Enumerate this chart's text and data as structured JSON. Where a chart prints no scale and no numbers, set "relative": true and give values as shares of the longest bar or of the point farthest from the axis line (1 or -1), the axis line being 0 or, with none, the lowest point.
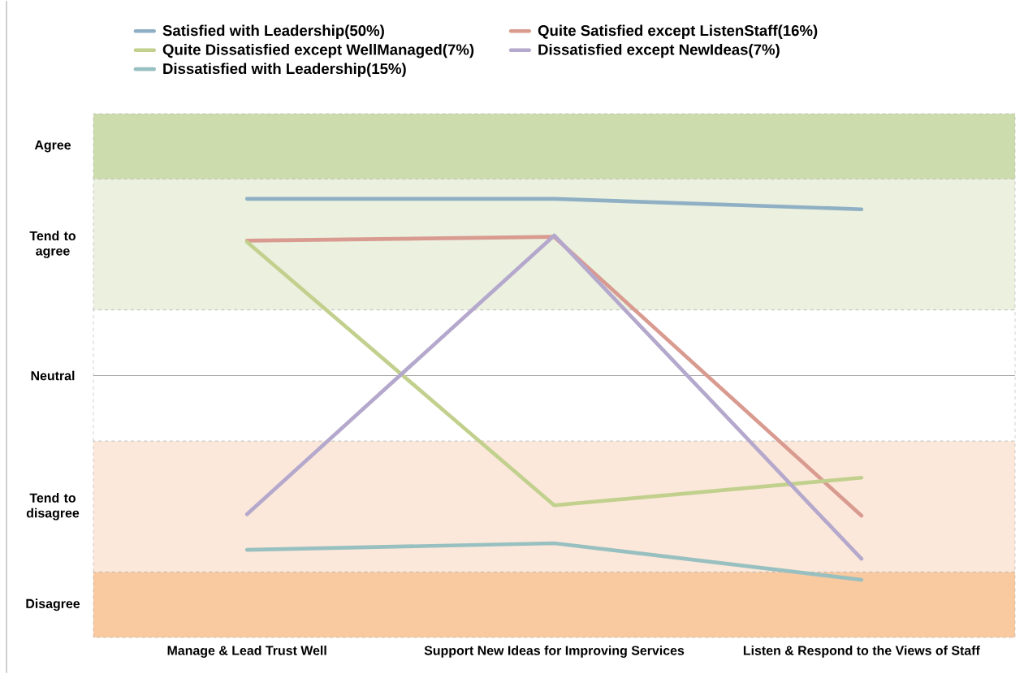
{
  "chart_data": {
    "type": "line",
    "categories": [
      "Manage & Lead Trust Well",
      "Support New Ideas for Improving Services",
      "Listen & Respond to the Views of Staff"
    ],
    "series": [
      {
        "name": "Satisfied with Leadership(50%)",
        "color": "#8fb0c4",
        "values": [
          0.865,
          0.865,
          0.814
        ]
      },
      {
        "name": "Quite Satisfied except ListenStaff(16%)",
        "color": "#d99a90",
        "values": [
          0.66,
          0.679,
          -0.686
        ]
      },
      {
        "name": "Quite Dissatisfied except WellManaged(7%)",
        "color": "#c2d08e",
        "values": [
          0.654,
          -0.635,
          -0.5
        ]
      },
      {
        "name": "Dissatisfied except NewIdeas(7%)",
        "color": "#b4a8cc",
        "values": [
          -0.679,
          0.686,
          -0.897
        ]
      },
      {
        "name": "Dissatisfied with Leadership(15%)",
        "color": "#98c0c0",
        "values": [
          -0.853,
          -0.821,
          -1
        ]
      }
    ],
    "relative": true,
    "bands": [
      {
        "axis": "y",
        "from": 0.962,
        "to": 1.282,
        "label": "Agree",
        "color": "#ccdcac"
      },
      {
        "axis": "y",
        "from": 0.321,
        "to": 0.962,
        "label": "Tend to agree",
        "color": "#ebf0df"
      },
      {
        "axis": "y",
        "from": -0.321,
        "to": 0.321,
        "label": "Neutral",
        "color": "#ffffff"
      },
      {
        "axis": "y",
        "from": -0.962,
        "to": -0.321,
        "label": "Tend to disagree",
        "color": "#fbe8da"
      },
      {
        "axis": "y",
        "from": -1.282,
        "to": -0.962,
        "label": "Disagree",
        "color": "#f9c9a0"
      }
    ],
    "grid": "x",
    "legend": "top"
  }
}
